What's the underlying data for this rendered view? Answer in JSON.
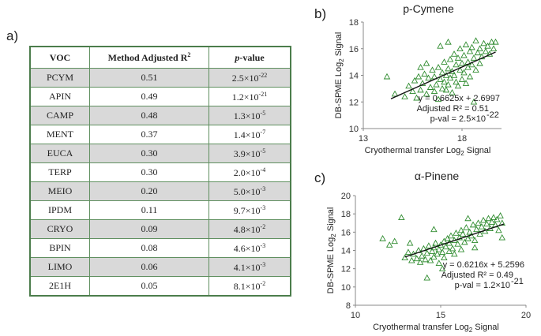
{
  "panel_labels": {
    "a": "a)",
    "b": "b)",
    "c": "c)"
  },
  "table": {
    "headers": {
      "voc": "VOC",
      "r2": "Method Adjusted R",
      "r2_sup": "2",
      "p": "p",
      "p_rest": "-value"
    },
    "rows": [
      {
        "voc": "PCYM",
        "r2": "0.51",
        "mant": "2.5×10",
        "exp": "-22"
      },
      {
        "voc": "APIN",
        "r2": "0.49",
        "mant": "1.2×10",
        "exp": "-21"
      },
      {
        "voc": "CAMP",
        "r2": "0.48",
        "mant": "1.3×10",
        "exp": "-5"
      },
      {
        "voc": "MENT",
        "r2": "0.37",
        "mant": "1.4×10",
        "exp": "-7"
      },
      {
        "voc": "EUCA",
        "r2": "0.30",
        "mant": "3.9×10",
        "exp": "-5"
      },
      {
        "voc": "TERP",
        "r2": "0.30",
        "mant": "2.0×10",
        "exp": "-4"
      },
      {
        "voc": "MEIO",
        "r2": "0.20",
        "mant": "5.0×10",
        "exp": "-3"
      },
      {
        "voc": "IPDM",
        "r2": "0.11",
        "mant": "9.7×10",
        "exp": "-3"
      },
      {
        "voc": "CRYO",
        "r2": "0.09",
        "mant": "4.8×10",
        "exp": "-2"
      },
      {
        "voc": "BPIN",
        "r2": "0.08",
        "mant": "4.6×10",
        "exp": "-3"
      },
      {
        "voc": "LIMO",
        "r2": "0.06",
        "mant": "4.1×10",
        "exp": "-3"
      },
      {
        "voc": "2E1H",
        "r2": "0.05",
        "mant": "8.1×10",
        "exp": "-2"
      }
    ]
  },
  "colors": {
    "marker": "#2e8b2e",
    "line": "#111111",
    "axis": "#888888"
  },
  "chart_data": [
    {
      "id": "b",
      "type": "scatter",
      "title": "p-Cymene",
      "xlabel": "Cryothermal transfer Log",
      "xlabel_sub": "2",
      "xlabel_end": " Signal",
      "ylabel": "DB-SPME Log",
      "ylabel_sub": "2",
      "ylabel_end": " Signal",
      "xlim": [
        13,
        20
      ],
      "ylim": [
        10,
        18
      ],
      "xticks": [
        13,
        18
      ],
      "yticks": [
        10,
        12,
        14,
        16,
        18
      ],
      "fit": {
        "slope": 0.6625,
        "intercept": 2.6997,
        "x_range": [
          14.4,
          19.7
        ]
      },
      "annotations": [
        "y = 0.6625x + 2.6997",
        "Adjusted R² = 0.51",
        "p-val = 2.5×10",
        "-22"
      ],
      "points": [
        [
          14.2,
          13.9
        ],
        [
          14.6,
          12.6
        ],
        [
          15.1,
          12.4
        ],
        [
          15.3,
          13.2
        ],
        [
          15.5,
          12.8
        ],
        [
          15.6,
          13.6
        ],
        [
          15.7,
          12.3
        ],
        [
          15.8,
          13.9
        ],
        [
          15.9,
          12.9
        ],
        [
          16.0,
          13.4
        ],
        [
          16.1,
          14.1
        ],
        [
          16.2,
          12.6
        ],
        [
          16.3,
          13.8
        ],
        [
          16.4,
          13.1
        ],
        [
          16.5,
          14.4
        ],
        [
          16.6,
          12.8
        ],
        [
          16.6,
          13.9
        ],
        [
          16.7,
          13.3
        ],
        [
          16.8,
          14.6
        ],
        [
          16.8,
          12.2
        ],
        [
          16.9,
          13.7
        ],
        [
          17.0,
          14.2
        ],
        [
          17.0,
          13.0
        ],
        [
          17.1,
          15.0
        ],
        [
          17.1,
          13.5
        ],
        [
          17.2,
          14.0
        ],
        [
          17.2,
          12.9
        ],
        [
          17.3,
          14.5
        ],
        [
          17.3,
          13.3
        ],
        [
          17.4,
          15.2
        ],
        [
          17.4,
          13.8
        ],
        [
          17.5,
          14.3
        ],
        [
          17.5,
          12.7
        ],
        [
          17.6,
          15.6
        ],
        [
          17.6,
          14.0
        ],
        [
          17.7,
          13.5
        ],
        [
          17.7,
          14.8
        ],
        [
          17.8,
          15.3
        ],
        [
          17.8,
          13.2
        ],
        [
          17.9,
          14.4
        ],
        [
          17.9,
          16.0
        ],
        [
          18.0,
          14.9
        ],
        [
          18.0,
          13.7
        ],
        [
          18.1,
          15.5
        ],
        [
          18.1,
          14.2
        ],
        [
          18.2,
          16.3
        ],
        [
          18.2,
          13.4
        ],
        [
          18.3,
          15.0
        ],
        [
          18.3,
          14.6
        ],
        [
          18.4,
          15.8
        ],
        [
          18.4,
          13.9
        ],
        [
          18.5,
          16.1
        ],
        [
          18.5,
          14.8
        ],
        [
          18.6,
          15.3
        ],
        [
          18.7,
          16.6
        ],
        [
          18.7,
          14.4
        ],
        [
          18.8,
          15.7
        ],
        [
          18.9,
          16.0
        ],
        [
          18.9,
          14.9
        ],
        [
          19.0,
          15.4
        ],
        [
          19.1,
          16.4
        ],
        [
          19.2,
          15.8
        ],
        [
          19.3,
          16.2
        ],
        [
          19.4,
          15.6
        ],
        [
          19.5,
          16.5
        ],
        [
          19.6,
          16.0
        ],
        [
          19.7,
          16.5
        ],
        [
          18.6,
          12.0
        ],
        [
          16.9,
          16.2
        ],
        [
          17.3,
          16.5
        ],
        [
          16.2,
          14.9
        ],
        [
          15.9,
          14.6
        ]
      ]
    },
    {
      "id": "c",
      "type": "scatter",
      "title": "α-Pinene",
      "xlabel": "Cryothermal transfer Log",
      "xlabel_sub": "2",
      "xlabel_end": " Signal",
      "ylabel": "DB-SPME Log",
      "ylabel_sub": "2",
      "ylabel_end": " Signal",
      "xlim": [
        10,
        20
      ],
      "ylim": [
        8,
        20
      ],
      "xticks": [
        10,
        15,
        20
      ],
      "yticks": [
        8,
        10,
        12,
        14,
        16,
        18,
        20
      ],
      "fit": {
        "slope": 0.6216,
        "intercept": 5.2596,
        "x_range": [
          12.9,
          18.7
        ]
      },
      "annotations": [
        "y = 0.6216x + 5.2596",
        "Adjusted R² = 0.49",
        "p-val = 1.2×10",
        "-21"
      ],
      "points": [
        [
          11.6,
          15.3
        ],
        [
          12.0,
          14.6
        ],
        [
          12.3,
          15.0
        ],
        [
          12.7,
          17.6
        ],
        [
          12.9,
          13.2
        ],
        [
          13.1,
          13.8
        ],
        [
          13.3,
          12.9
        ],
        [
          13.4,
          13.6
        ],
        [
          13.6,
          13.1
        ],
        [
          13.7,
          14.0
        ],
        [
          13.8,
          12.7
        ],
        [
          13.9,
          13.4
        ],
        [
          14.0,
          14.2
        ],
        [
          14.1,
          13.0
        ],
        [
          14.2,
          13.7
        ],
        [
          14.3,
          14.5
        ],
        [
          14.4,
          12.9
        ],
        [
          14.5,
          13.9
        ],
        [
          14.6,
          14.3
        ],
        [
          14.6,
          13.3
        ],
        [
          14.7,
          14.8
        ],
        [
          14.8,
          13.6
        ],
        [
          14.9,
          14.1
        ],
        [
          14.9,
          12.6
        ],
        [
          15.0,
          14.6
        ],
        [
          15.1,
          13.8
        ],
        [
          15.2,
          15.0
        ],
        [
          15.2,
          13.2
        ],
        [
          15.3,
          14.4
        ],
        [
          15.4,
          15.3
        ],
        [
          15.5,
          13.9
        ],
        [
          15.5,
          14.8
        ],
        [
          15.6,
          15.6
        ],
        [
          15.7,
          14.2
        ],
        [
          15.8,
          15.1
        ],
        [
          15.8,
          13.6
        ],
        [
          15.9,
          15.9
        ],
        [
          16.0,
          14.7
        ],
        [
          16.1,
          15.4
        ],
        [
          16.2,
          16.2
        ],
        [
          16.2,
          14.1
        ],
        [
          16.3,
          15.8
        ],
        [
          16.4,
          14.9
        ],
        [
          16.5,
          16.5
        ],
        [
          16.6,
          15.3
        ],
        [
          16.7,
          16.0
        ],
        [
          16.8,
          15.6
        ],
        [
          16.9,
          16.8
        ],
        [
          17.0,
          15.1
        ],
        [
          17.1,
          16.3
        ],
        [
          17.2,
          17.0
        ],
        [
          17.3,
          15.8
        ],
        [
          17.4,
          16.6
        ],
        [
          17.5,
          17.3
        ],
        [
          17.6,
          16.1
        ],
        [
          17.7,
          16.9
        ],
        [
          17.8,
          17.5
        ],
        [
          17.9,
          16.4
        ],
        [
          18.0,
          17.1
        ],
        [
          18.1,
          17.6
        ],
        [
          18.2,
          16.8
        ],
        [
          18.3,
          17.4
        ],
        [
          18.4,
          16.2
        ],
        [
          18.5,
          17.8
        ],
        [
          18.6,
          17.0
        ],
        [
          18.6,
          15.4
        ],
        [
          14.2,
          11.0
        ],
        [
          15.1,
          12.0
        ],
        [
          14.6,
          16.3
        ],
        [
          16.6,
          17.5
        ],
        [
          13.2,
          14.8
        ],
        [
          17.0,
          14.3
        ]
      ]
    }
  ]
}
